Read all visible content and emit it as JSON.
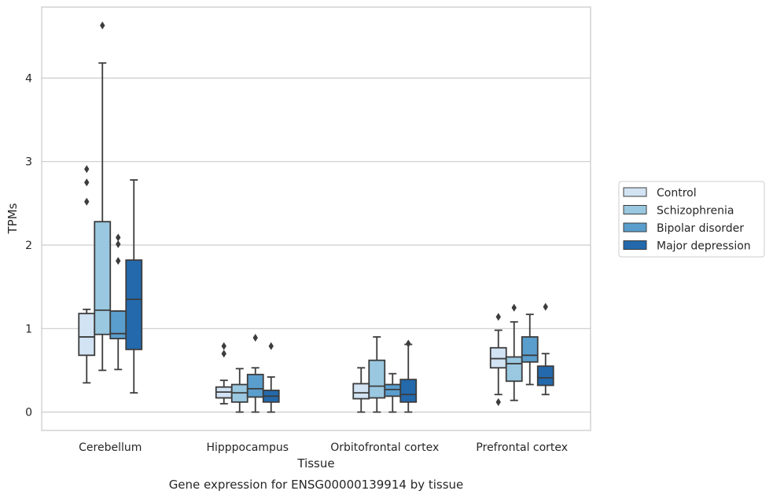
{
  "caption": "Gene expression for ENSG00000139914 by tissue",
  "chart_data": {
    "type": "box",
    "xlabel": "Tissue",
    "ylabel": "TPMs",
    "ylim": [
      -0.22,
      4.85
    ],
    "yticks": [
      0,
      1,
      2,
      3,
      4
    ],
    "grid": "horizontal",
    "legend_position": "right",
    "categories": [
      "Cerebellum",
      "Hipppocampus",
      "Orbitofrontal cortex",
      "Prefrontal cortex"
    ],
    "series": [
      {
        "name": "Control",
        "color": "#d2e3f3",
        "boxes": [
          {
            "whisker_low": 0.35,
            "q1": 0.68,
            "median": 0.9,
            "q3": 1.18,
            "whisker_high": 1.23,
            "outliers": [
              2.52,
              2.75,
              2.91
            ]
          },
          {
            "whisker_low": 0.1,
            "q1": 0.17,
            "median": 0.24,
            "q3": 0.3,
            "whisker_high": 0.38,
            "outliers": [
              0.7,
              0.79
            ]
          },
          {
            "whisker_low": 0.0,
            "q1": 0.16,
            "median": 0.23,
            "q3": 0.34,
            "whisker_high": 0.53,
            "outliers": []
          },
          {
            "whisker_low": 0.21,
            "q1": 0.53,
            "median": 0.64,
            "q3": 0.77,
            "whisker_high": 0.98,
            "outliers": [
              0.12,
              1.14
            ]
          }
        ]
      },
      {
        "name": "Schizophrenia",
        "color": "#9ac8e0",
        "boxes": [
          {
            "whisker_low": 0.5,
            "q1": 0.93,
            "median": 1.22,
            "q3": 2.28,
            "whisker_high": 4.18,
            "outliers": [
              4.63
            ]
          },
          {
            "whisker_low": 0.0,
            "q1": 0.12,
            "median": 0.23,
            "q3": 0.33,
            "whisker_high": 0.52,
            "outliers": []
          },
          {
            "whisker_low": 0.0,
            "q1": 0.17,
            "median": 0.31,
            "q3": 0.62,
            "whisker_high": 0.9,
            "outliers": []
          },
          {
            "whisker_low": 0.14,
            "q1": 0.37,
            "median": 0.58,
            "q3": 0.66,
            "whisker_high": 1.08,
            "outliers": [
              1.25
            ]
          }
        ]
      },
      {
        "name": "Bipolar disorder",
        "color": "#5a9ecd",
        "boxes": [
          {
            "whisker_low": 0.51,
            "q1": 0.88,
            "median": 0.94,
            "q3": 1.21,
            "whisker_high": 1.21,
            "outliers": [
              1.81,
              2.01,
              2.09
            ]
          },
          {
            "whisker_low": 0.0,
            "q1": 0.18,
            "median": 0.28,
            "q3": 0.45,
            "whisker_high": 0.53,
            "outliers": [
              0.89
            ]
          },
          {
            "whisker_low": 0.0,
            "q1": 0.19,
            "median": 0.27,
            "q3": 0.33,
            "whisker_high": 0.46,
            "outliers": []
          },
          {
            "whisker_low": 0.33,
            "q1": 0.6,
            "median": 0.68,
            "q3": 0.9,
            "whisker_high": 1.17,
            "outliers": []
          }
        ]
      },
      {
        "name": "Major depression",
        "color": "#2369ac",
        "boxes": [
          {
            "whisker_low": 0.23,
            "q1": 0.75,
            "median": 1.35,
            "q3": 1.82,
            "whisker_high": 2.78,
            "outliers": []
          },
          {
            "whisker_low": 0.0,
            "q1": 0.12,
            "median": 0.19,
            "q3": 0.26,
            "whisker_high": 0.42,
            "outliers": [
              0.79
            ]
          },
          {
            "whisker_low": 0.0,
            "q1": 0.12,
            "median": 0.21,
            "q3": 0.39,
            "whisker_high": 0.81,
            "outliers": [
              0.82
            ]
          },
          {
            "whisker_low": 0.21,
            "q1": 0.32,
            "median": 0.41,
            "q3": 0.55,
            "whisker_high": 0.7,
            "outliers": [
              1.26
            ]
          }
        ]
      }
    ],
    "style": {
      "box_edge": "#3c3c3c",
      "grid_color": "#cccccc",
      "axes_edge": "#cccccc",
      "text": "#262626"
    }
  }
}
